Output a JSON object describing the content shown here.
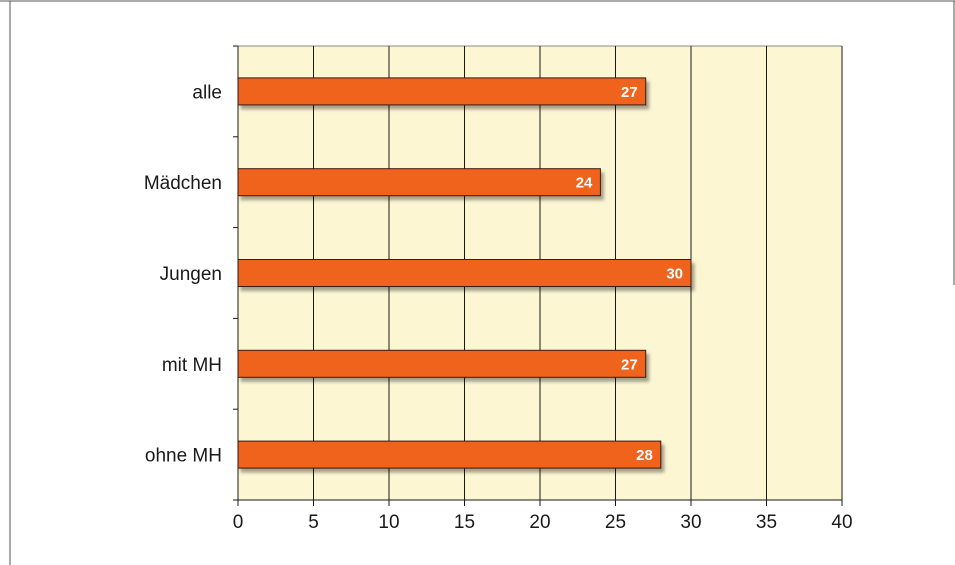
{
  "chart_data": {
    "type": "bar",
    "orientation": "horizontal",
    "categories": [
      "alle",
      "Mädchen",
      "Jungen",
      "mit MH",
      "ohne MH"
    ],
    "values": [
      27,
      24,
      30,
      27,
      28
    ],
    "title": "",
    "xlabel": "",
    "ylabel": "",
    "xlim": [
      0,
      40
    ],
    "xticks": [
      0,
      5,
      10,
      15,
      20,
      25,
      30,
      35,
      40
    ],
    "grid": "vertical",
    "legend": "none",
    "colors": {
      "bar": "#f0641e",
      "bar_border": "#3a1a0a",
      "plot_bg": "#fdf6d3",
      "grid": "#1a1a1a",
      "axis": "#1a1a1a",
      "frame": "#555555"
    }
  }
}
